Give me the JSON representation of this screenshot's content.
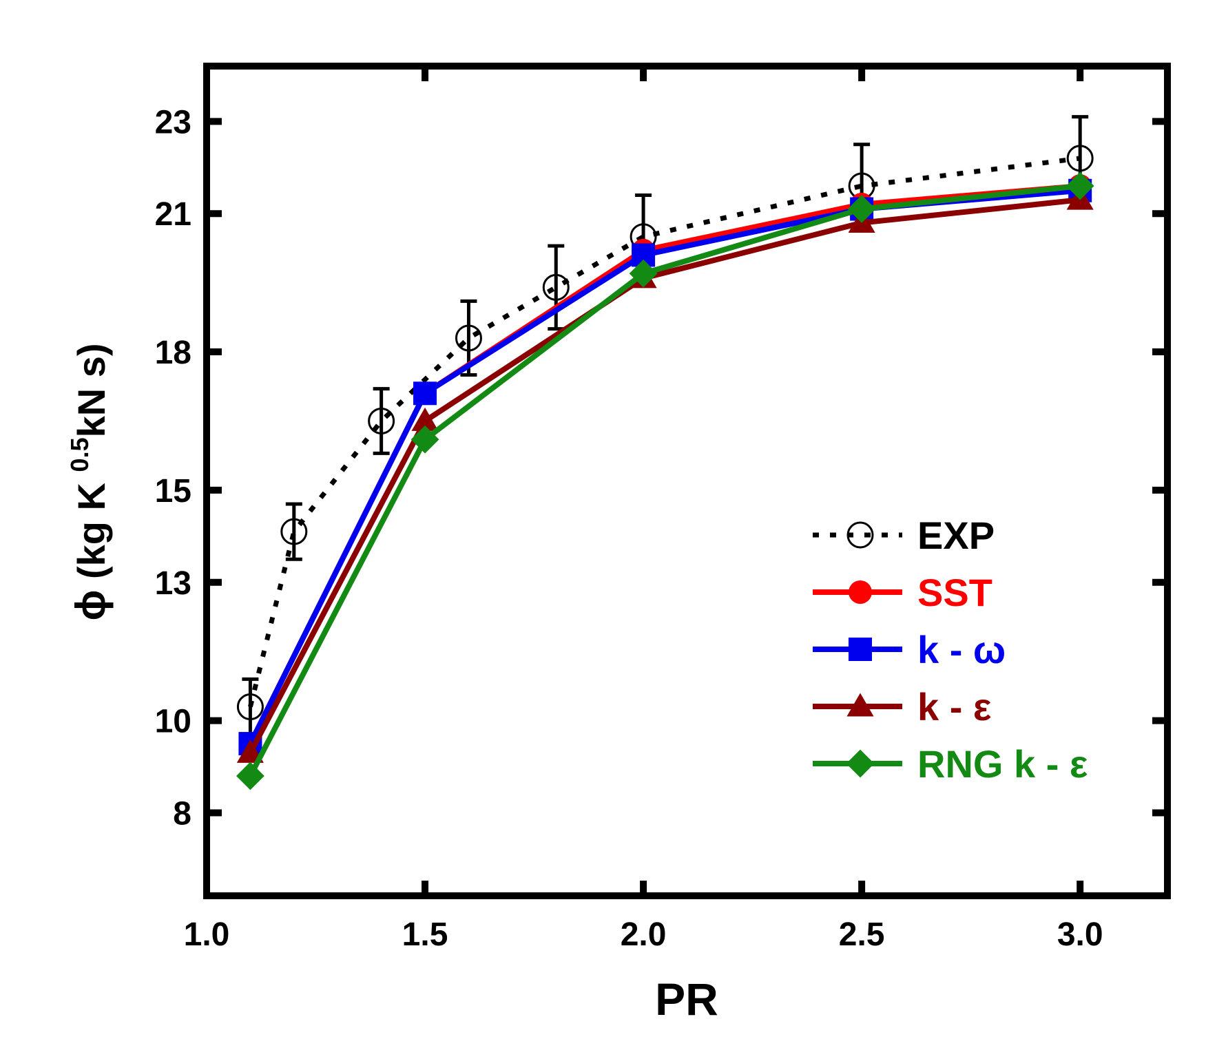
{
  "chart_data": {
    "type": "line",
    "title": "",
    "xlabel": "PR",
    "ylabel_parts": {
      "phi": "ϕ",
      "open": " (kg K ",
      "sup": "0.5",
      "close": "kN s)"
    },
    "xlim": [
      1.0,
      3.2
    ],
    "ylim": [
      6.2,
      24.2
    ],
    "xticks": [
      1.0,
      1.5,
      2.0,
      2.5,
      3.0
    ],
    "xtick_labels": [
      "1.0",
      "1.5",
      "2.0",
      "2.5",
      "3.0"
    ],
    "yticks": [
      8,
      10,
      13,
      15,
      18,
      21,
      23
    ],
    "ytick_labels": [
      "8",
      "10",
      "13",
      "15",
      "18",
      "21",
      "23"
    ],
    "grid": false,
    "legend_position": "bottom-right",
    "series": [
      {
        "name": "EXP",
        "color": "#000000",
        "line": "dotted",
        "marker": "open-circle",
        "x": [
          1.1,
          1.2,
          1.4,
          1.6,
          1.8,
          2.0,
          2.5,
          3.0
        ],
        "y": [
          10.3,
          14.1,
          16.5,
          18.3,
          19.4,
          20.5,
          21.6,
          22.2
        ],
        "error": [
          0.6,
          0.6,
          0.7,
          0.8,
          0.9,
          0.9,
          0.9,
          0.9
        ]
      },
      {
        "name": "SST",
        "color": "#ff0000",
        "line": "solid",
        "marker": "filled-circle",
        "x": [
          1.1,
          1.5,
          2.0,
          2.5,
          3.0
        ],
        "y": [
          9.5,
          17.1,
          20.2,
          21.2,
          21.6
        ]
      },
      {
        "name": "k - ω",
        "color": "#0000ee",
        "line": "solid",
        "marker": "filled-square",
        "x": [
          1.1,
          1.5,
          2.0,
          2.5,
          3.0
        ],
        "y": [
          9.5,
          17.1,
          20.1,
          21.1,
          21.5
        ]
      },
      {
        "name": "k - ε",
        "color": "#8b0000",
        "line": "solid",
        "marker": "filled-triangle",
        "x": [
          1.1,
          1.5,
          2.0,
          2.5,
          3.0
        ],
        "y": [
          9.3,
          16.5,
          19.6,
          20.8,
          21.3
        ]
      },
      {
        "name": "RNG k - ε",
        "color": "#138a13",
        "line": "solid",
        "marker": "filled-diamond",
        "x": [
          1.1,
          1.5,
          2.0,
          2.5,
          3.0
        ],
        "y": [
          8.8,
          16.1,
          19.7,
          21.1,
          21.6
        ]
      }
    ]
  }
}
